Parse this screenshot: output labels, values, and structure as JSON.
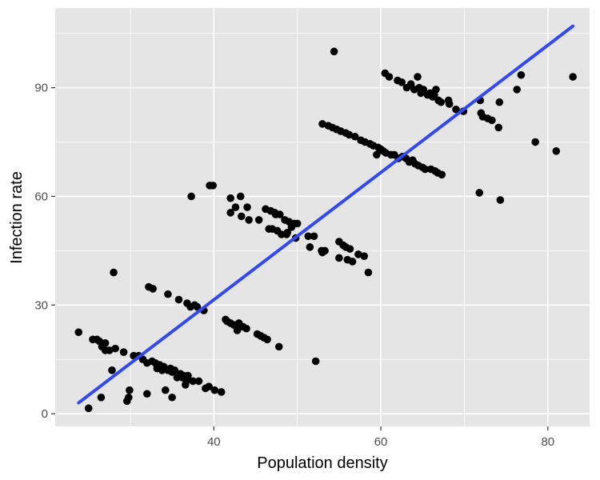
{
  "chart_data": {
    "type": "scatter",
    "title": "",
    "xlabel": "Population density",
    "ylabel": "Infection rate",
    "xlim": [
      21,
      85
    ],
    "ylim": [
      -3.5,
      112
    ],
    "x_ticks": [
      40,
      60,
      80
    ],
    "y_ticks": [
      0,
      30,
      60,
      90
    ],
    "grid": true,
    "colors": {
      "panel": "#e5e5e5",
      "grid": "#ffffff",
      "points": "#000000",
      "fit_line": "#3349f0"
    },
    "fit_line": {
      "x": [
        23.8,
        83
      ],
      "y": [
        3,
        107
      ]
    },
    "points": [
      [
        23.8,
        22.5
      ],
      [
        25.0,
        1.5
      ],
      [
        25.5,
        20.5
      ],
      [
        26.0,
        20.5
      ],
      [
        26.3,
        20.0
      ],
      [
        26.5,
        4.5
      ],
      [
        26.6,
        18.5
      ],
      [
        27.0,
        19.5
      ],
      [
        27.0,
        17.5
      ],
      [
        27.5,
        17.5
      ],
      [
        27.8,
        12.0
      ],
      [
        28.0,
        39.0
      ],
      [
        28.2,
        18.0
      ],
      [
        29.2,
        17.0
      ],
      [
        29.6,
        3.5
      ],
      [
        29.8,
        4.5
      ],
      [
        29.9,
        6.5
      ],
      [
        30.4,
        16.0
      ],
      [
        31.0,
        16.0
      ],
      [
        31.5,
        15.0
      ],
      [
        32.0,
        5.5
      ],
      [
        32.0,
        14.0
      ],
      [
        32.2,
        35.0
      ],
      [
        32.6,
        14.5
      ],
      [
        32.7,
        34.5
      ],
      [
        33.0,
        14.0
      ],
      [
        33.2,
        12.5
      ],
      [
        33.5,
        13.5
      ],
      [
        33.8,
        12.0
      ],
      [
        34.0,
        13.0
      ],
      [
        34.2,
        6.5
      ],
      [
        34.5,
        12.0
      ],
      [
        34.5,
        33.0
      ],
      [
        34.8,
        12.5
      ],
      [
        35.0,
        11.5
      ],
      [
        35.0,
        4.5
      ],
      [
        35.3,
        12.0
      ],
      [
        35.6,
        10.0
      ],
      [
        35.8,
        31.5
      ],
      [
        36.0,
        11.0
      ],
      [
        36.2,
        10.0
      ],
      [
        36.4,
        10.5
      ],
      [
        36.6,
        8.0
      ],
      [
        36.7,
        9.0
      ],
      [
        36.8,
        30.5
      ],
      [
        36.9,
        10.5
      ],
      [
        37.2,
        29.5
      ],
      [
        37.3,
        60.0
      ],
      [
        37.5,
        9.0
      ],
      [
        37.7,
        30.0
      ],
      [
        38.0,
        29.5
      ],
      [
        38.2,
        9.0
      ],
      [
        38.8,
        28.5
      ],
      [
        39.0,
        7.0
      ],
      [
        39.4,
        7.5
      ],
      [
        39.5,
        63.0
      ],
      [
        39.9,
        63.0
      ],
      [
        40.1,
        6.5
      ],
      [
        40.9,
        6.0
      ],
      [
        41.4,
        26.0
      ],
      [
        41.6,
        25.5
      ],
      [
        42.0,
        25.0
      ],
      [
        42.0,
        55.5
      ],
      [
        42.0,
        59.5
      ],
      [
        42.4,
        24.5
      ],
      [
        42.6,
        57.0
      ],
      [
        42.8,
        23.0
      ],
      [
        43.0,
        25.0
      ],
      [
        43.2,
        60.0
      ],
      [
        43.3,
        54.5
      ],
      [
        43.5,
        24.0
      ],
      [
        43.9,
        23.5
      ],
      [
        44.0,
        57.0
      ],
      [
        44.2,
        53.5
      ],
      [
        45.2,
        22.0
      ],
      [
        45.4,
        53.5
      ],
      [
        45.6,
        21.5
      ],
      [
        46.0,
        21.0
      ],
      [
        46.2,
        56.5
      ],
      [
        46.4,
        20.5
      ],
      [
        46.6,
        51.0
      ],
      [
        46.8,
        56.0
      ],
      [
        47.0,
        51.0
      ],
      [
        47.3,
        55.5
      ],
      [
        47.4,
        55.0
      ],
      [
        47.6,
        50.5
      ],
      [
        47.8,
        18.5
      ],
      [
        47.9,
        55.0
      ],
      [
        48.1,
        49.5
      ],
      [
        48.5,
        53.5
      ],
      [
        48.7,
        49.5
      ],
      [
        48.8,
        50.0
      ],
      [
        49.0,
        53.0
      ],
      [
        49.3,
        51.5
      ],
      [
        49.6,
        52.5
      ],
      [
        49.8,
        48.5
      ],
      [
        50.0,
        52.5
      ],
      [
        51.3,
        49.0
      ],
      [
        51.5,
        46.0
      ],
      [
        52.0,
        49.0
      ],
      [
        52.2,
        14.5
      ],
      [
        52.9,
        45.0
      ],
      [
        53.0,
        44.5
      ],
      [
        53.0,
        80.0
      ],
      [
        53.3,
        45.0
      ],
      [
        53.7,
        79.5
      ],
      [
        54.2,
        79.0
      ],
      [
        54.4,
        100.0
      ],
      [
        54.7,
        78.5
      ],
      [
        55.0,
        47.5
      ],
      [
        55.0,
        43.0
      ],
      [
        55.2,
        78.0
      ],
      [
        55.5,
        46.5
      ],
      [
        55.8,
        77.5
      ],
      [
        55.8,
        46.0
      ],
      [
        56.0,
        42.5
      ],
      [
        56.2,
        77.0
      ],
      [
        56.3,
        45.5
      ],
      [
        56.6,
        42.0
      ],
      [
        56.9,
        76.5
      ],
      [
        57.3,
        44.0
      ],
      [
        57.6,
        75.5
      ],
      [
        58.0,
        43.5
      ],
      [
        58.1,
        75.0
      ],
      [
        58.5,
        39.0
      ],
      [
        58.7,
        74.5
      ],
      [
        59.1,
        74.0
      ],
      [
        59.5,
        71.5
      ],
      [
        59.7,
        73.5
      ],
      [
        60.0,
        73.0
      ],
      [
        60.3,
        72.5
      ],
      [
        60.5,
        94.0
      ],
      [
        60.6,
        72.0
      ],
      [
        61.0,
        93.0
      ],
      [
        61.2,
        71.5
      ],
      [
        61.6,
        71.5
      ],
      [
        62.0,
        92.0
      ],
      [
        62.1,
        70.5
      ],
      [
        62.5,
        91.5
      ],
      [
        62.6,
        71.0
      ],
      [
        63.0,
        70.5
      ],
      [
        63.1,
        90.0
      ],
      [
        63.4,
        69.5
      ],
      [
        63.6,
        91.0
      ],
      [
        63.8,
        70.0
      ],
      [
        64.0,
        89.5
      ],
      [
        64.1,
        69.0
      ],
      [
        64.4,
        93.0
      ],
      [
        64.5,
        68.5
      ],
      [
        64.6,
        90.0
      ],
      [
        64.8,
        88.5
      ],
      [
        65.0,
        68.0
      ],
      [
        65.1,
        89.5
      ],
      [
        65.3,
        67.5
      ],
      [
        65.6,
        88.0
      ],
      [
        65.9,
        88.5
      ],
      [
        66.0,
        67.5
      ],
      [
        66.2,
        87.5
      ],
      [
        66.4,
        88.0
      ],
      [
        66.5,
        67.0
      ],
      [
        66.6,
        89.5
      ],
      [
        66.8,
        66.5
      ],
      [
        66.9,
        86.5
      ],
      [
        67.2,
        86.0
      ],
      [
        67.3,
        66.0
      ],
      [
        68.1,
        86.5
      ],
      [
        68.2,
        85.5
      ],
      [
        69.0,
        84.0
      ],
      [
        69.9,
        83.5
      ],
      [
        71.8,
        61.0
      ],
      [
        71.9,
        86.5
      ],
      [
        72.0,
        83.0
      ],
      [
        72.2,
        82.0
      ],
      [
        72.8,
        81.5
      ],
      [
        73.3,
        81.0
      ],
      [
        74.1,
        79.0
      ],
      [
        74.2,
        86.0
      ],
      [
        74.3,
        59.0
      ],
      [
        76.3,
        89.5
      ],
      [
        76.8,
        93.5
      ],
      [
        78.5,
        75.0
      ],
      [
        81.0,
        72.5
      ],
      [
        83.0,
        93.0
      ]
    ]
  }
}
